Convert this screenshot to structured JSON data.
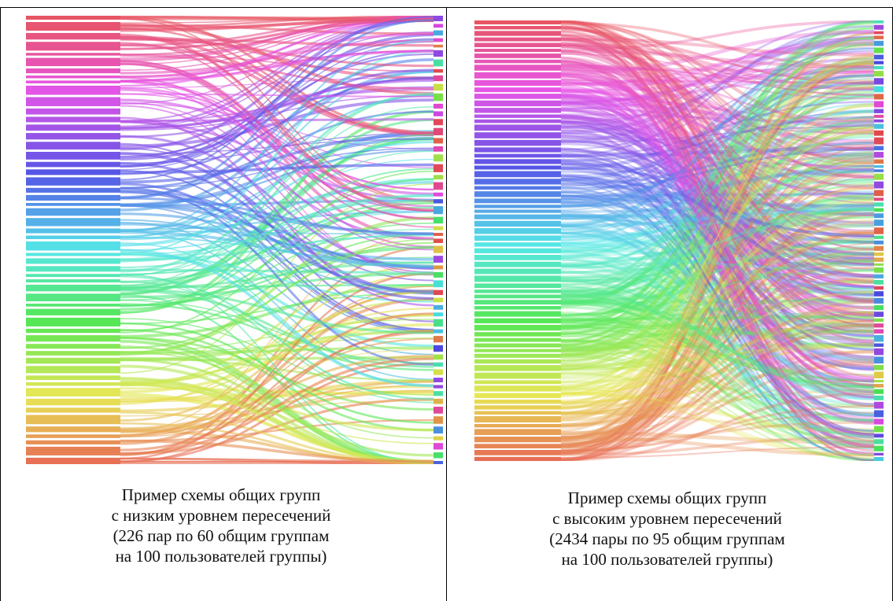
{
  "panels": [
    {
      "id": "low",
      "caption_lines": [
        "Пример схемы общих групп",
        "с низким уровнем пересечений",
        "(226 пар по 60 общим группам",
        "на 100 пользователей группы)"
      ],
      "diagram": {
        "type": "sankey-ribbons",
        "left_node_count": 55,
        "right_node_count": 55,
        "link_count": 226,
        "crossing": "low"
      }
    },
    {
      "id": "high",
      "caption_lines": [
        "Пример схемы общих групп",
        "с высоким уровнем пересечений",
        "(2434 пары по 95 общим группам",
        "на 100 пользователей группы)"
      ],
      "diagram": {
        "type": "sankey-ribbons",
        "left_node_count": 70,
        "right_node_count": 70,
        "link_count": 2434,
        "crossing": "high"
      }
    }
  ]
}
